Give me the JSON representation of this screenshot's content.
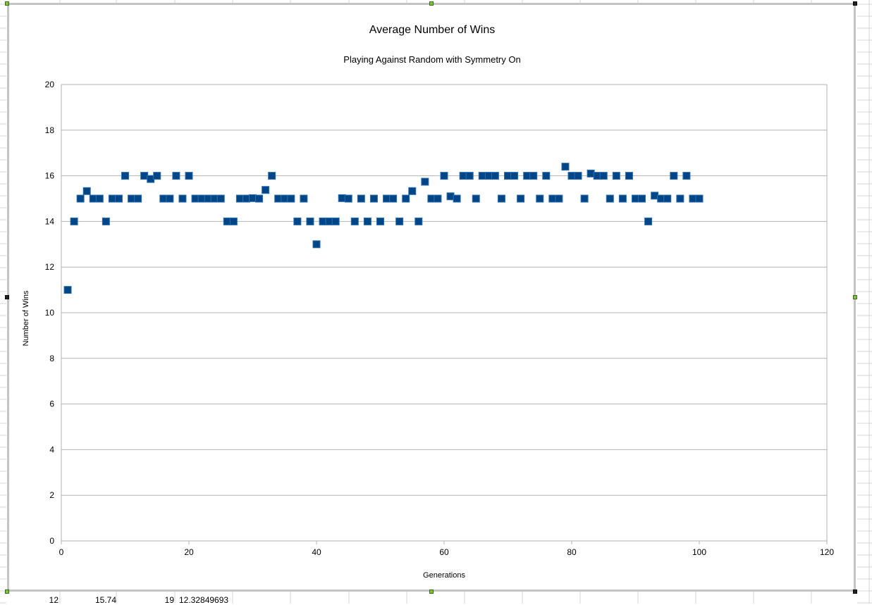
{
  "chart_data": {
    "type": "scatter",
    "title": "Average Number of Wins",
    "subtitle": "Playing Against Random with Symmetry On",
    "xlabel": "Generations",
    "ylabel": "Number of Wins",
    "xlim": [
      0,
      120
    ],
    "ylim": [
      0,
      20
    ],
    "xticks": [
      0,
      20,
      40,
      60,
      80,
      100,
      120
    ],
    "yticks": [
      0,
      2,
      4,
      6,
      8,
      10,
      12,
      14,
      16,
      18,
      20
    ],
    "grid": true,
    "legend": "none",
    "marker": "square",
    "color": "#004586",
    "x": [
      1,
      2,
      3,
      4,
      5,
      6,
      7,
      8,
      9,
      10,
      11,
      12,
      13,
      14,
      15,
      16,
      17,
      18,
      19,
      20,
      21,
      22,
      23,
      24,
      25,
      26,
      27,
      28,
      29,
      30,
      31,
      32,
      33,
      34,
      35,
      36,
      37,
      38,
      39,
      40,
      41,
      42,
      43,
      44,
      45,
      46,
      47,
      48,
      49,
      50,
      51,
      52,
      53,
      54,
      55,
      56,
      57,
      58,
      59,
      60,
      61,
      62,
      63,
      64,
      65,
      66,
      67,
      68,
      69,
      70,
      71,
      72,
      73,
      74,
      75,
      76,
      77,
      78,
      79,
      80,
      81,
      82,
      83,
      84,
      85,
      86,
      87,
      88,
      89,
      90,
      91,
      92,
      93,
      94,
      95,
      96,
      97,
      98,
      99,
      100
    ],
    "y": [
      11,
      14,
      15,
      15.33,
      15,
      15,
      14,
      15,
      15,
      16,
      15,
      15,
      16,
      15.86,
      16,
      15,
      15,
      16,
      15,
      16,
      15,
      15,
      15,
      15,
      15,
      14,
      14,
      15,
      15,
      15.02,
      15,
      15.38,
      16,
      15,
      15,
      15,
      14,
      15,
      14,
      13,
      14,
      14,
      14,
      15.02,
      15,
      14,
      15,
      14,
      15,
      14,
      15,
      15,
      14,
      15,
      15.33,
      14,
      15.74,
      15,
      15,
      16,
      15.1,
      15,
      16,
      16,
      15,
      16,
      16,
      16,
      15,
      16,
      16,
      15,
      16,
      16,
      15,
      16,
      15,
      15,
      16.4,
      16,
      16,
      15,
      16.1,
      16,
      16,
      15,
      16,
      15,
      16,
      15,
      15,
      14,
      15.13,
      15,
      15,
      16,
      15,
      16,
      15,
      15
    ]
  },
  "cells": [
    "12",
    "15.74",
    "19",
    "12.32849693"
  ],
  "colors": {
    "grid": "#b3b3b3",
    "frame": "#c4c4c4",
    "sheet_grid": "#d4d4d4",
    "handle": "#7fc241"
  }
}
